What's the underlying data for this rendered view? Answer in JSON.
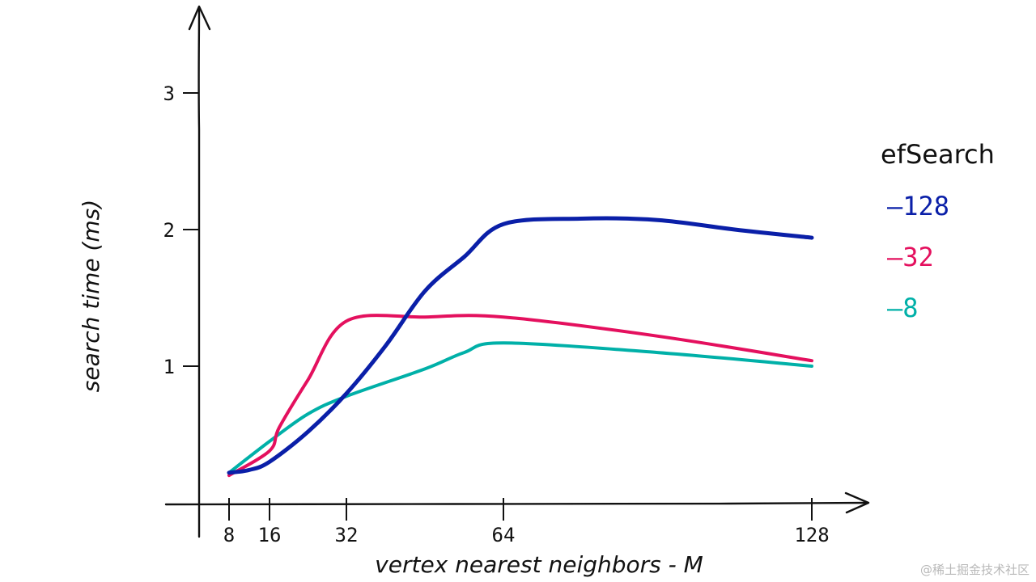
{
  "chart_data": {
    "type": "line",
    "title": "",
    "xlabel": "vertex nearest neighbors - M",
    "ylabel": "search time (ms)",
    "x": [
      8,
      16,
      32,
      64,
      128
    ],
    "xtick_labels": [
      "8",
      "16",
      "32",
      "64",
      "128"
    ],
    "yticks": [
      1,
      2,
      3
    ],
    "ytick_labels": [
      "1",
      "2",
      "3"
    ],
    "ylim": [
      0,
      3.6
    ],
    "legend_title": "efSearch",
    "legend_position": "right",
    "series": [
      {
        "name": "128",
        "legend_label": "—128",
        "color": "#0a1fa8",
        "points": [
          [
            8,
            0.22
          ],
          [
            12,
            0.24
          ],
          [
            16,
            0.3
          ],
          [
            24,
            0.52
          ],
          [
            32,
            0.8
          ],
          [
            40,
            1.15
          ],
          [
            48,
            1.55
          ],
          [
            56,
            1.8
          ],
          [
            64,
            2.04
          ],
          [
            80,
            2.08
          ],
          [
            96,
            2.07
          ],
          [
            112,
            2.0
          ],
          [
            128,
            1.94
          ]
        ]
      },
      {
        "name": "32",
        "legend_label": "—32",
        "color": "#e4105e",
        "points": [
          [
            8,
            0.2
          ],
          [
            16,
            0.38
          ],
          [
            18,
            0.55
          ],
          [
            24,
            0.9
          ],
          [
            32,
            1.33
          ],
          [
            48,
            1.36
          ],
          [
            64,
            1.36
          ],
          [
            96,
            1.22
          ],
          [
            128,
            1.04
          ]
        ]
      },
      {
        "name": "8",
        "legend_label": "—8",
        "color": "#00b0a8",
        "points": [
          [
            8,
            0.22
          ],
          [
            16,
            0.45
          ],
          [
            24,
            0.65
          ],
          [
            32,
            0.78
          ],
          [
            48,
            0.98
          ],
          [
            56,
            1.1
          ],
          [
            64,
            1.17
          ],
          [
            96,
            1.1
          ],
          [
            128,
            1.0
          ]
        ]
      }
    ]
  },
  "watermark": "@稀土掘金技术社区"
}
